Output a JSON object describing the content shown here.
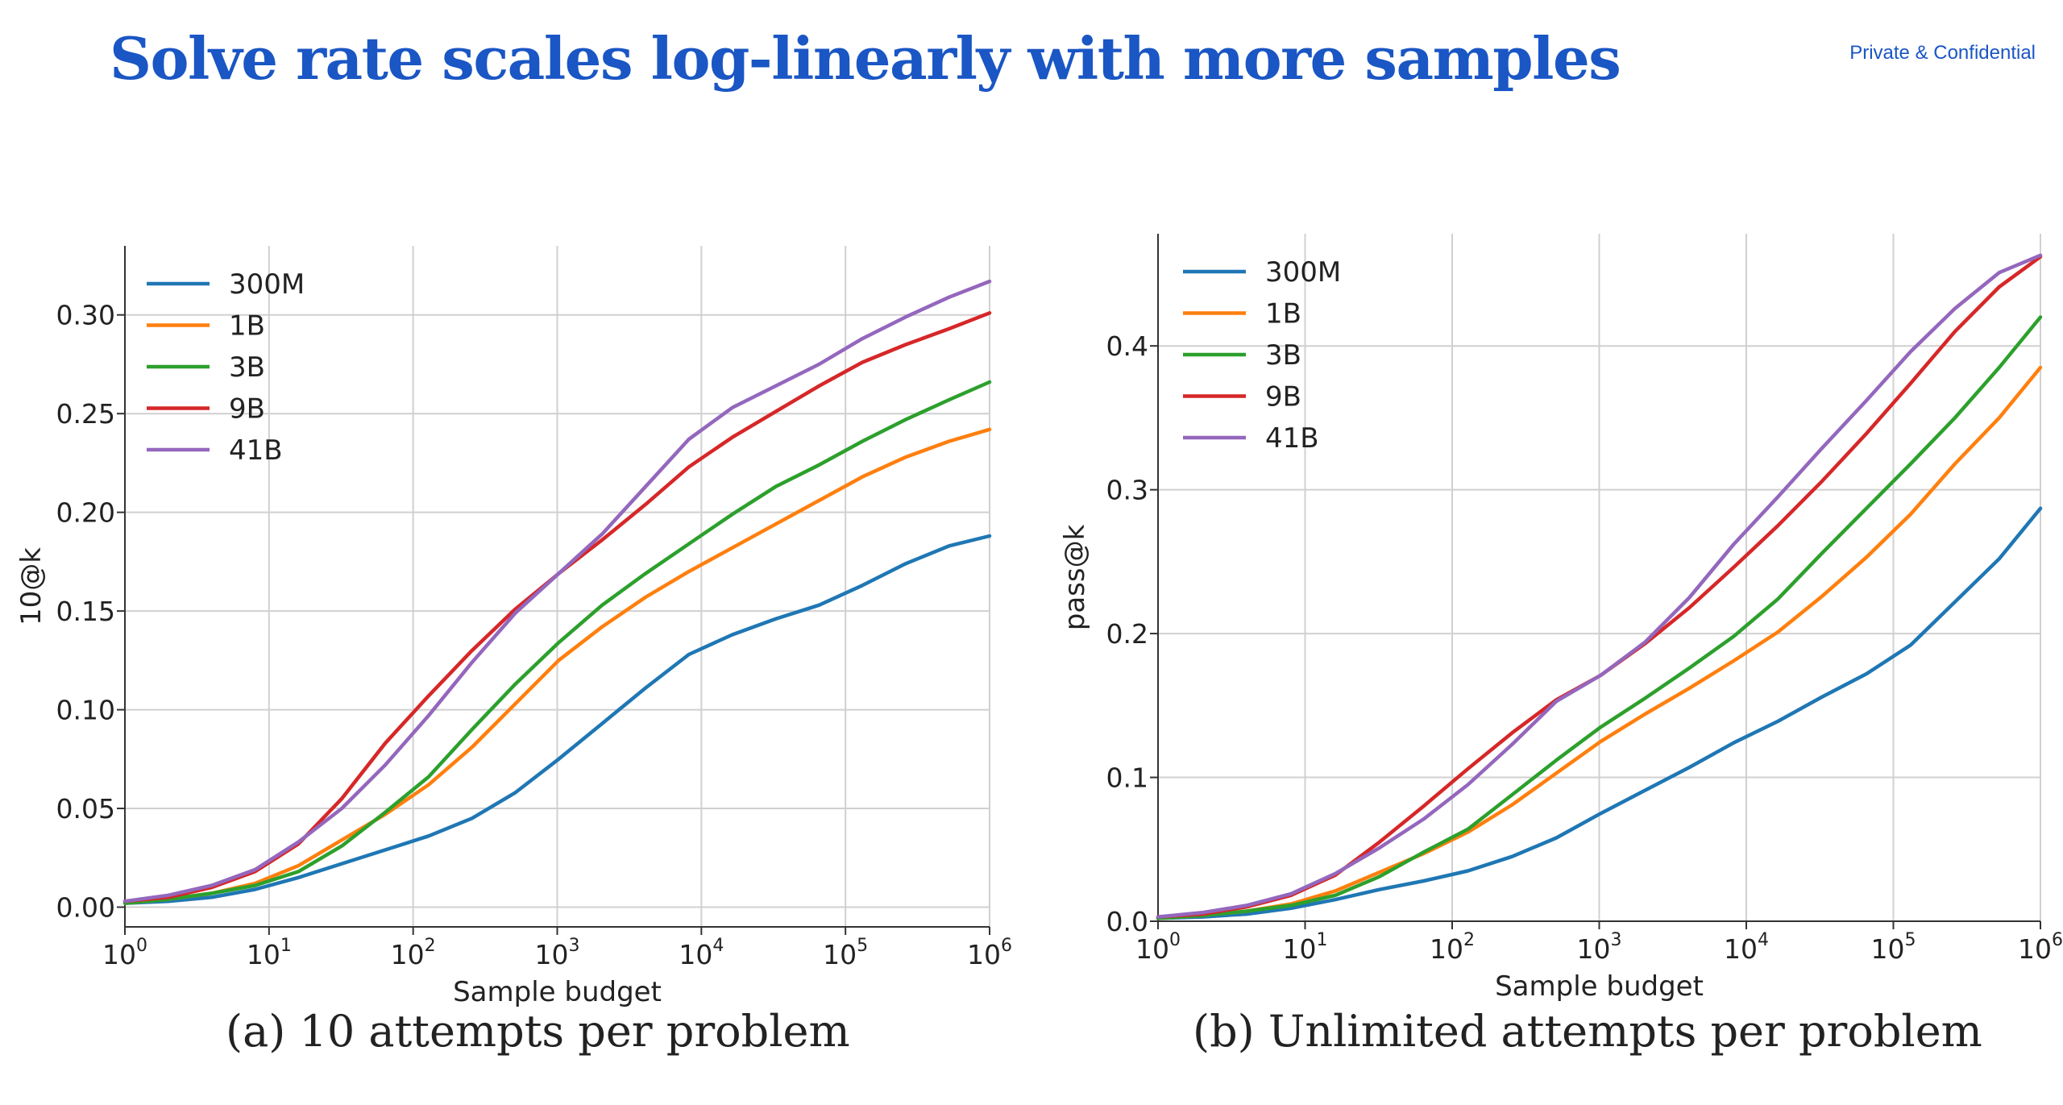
{
  "header": {
    "title": "Solve rate scales log-linearly with more samples",
    "confidential": "Private & Confidential"
  },
  "chart_data": [
    {
      "type": "line",
      "caption": "(a) 10 attempts per problem",
      "xlabel": "Sample budget",
      "ylabel": "10@k",
      "xscale": "log",
      "xlim": [
        1,
        1000000
      ],
      "ylim": [
        -0.01,
        0.335
      ],
      "xticks": [
        1,
        10,
        100,
        1000,
        10000,
        100000,
        1000000
      ],
      "yticks": [
        0.0,
        0.05,
        0.1,
        0.15,
        0.2,
        0.25,
        0.3
      ],
      "ytick_labels": [
        "0.00",
        "0.05",
        "0.10",
        "0.15",
        "0.20",
        "0.25",
        "0.30"
      ],
      "grid": true,
      "legend_position": "top-left",
      "x": [
        1,
        2,
        4,
        8,
        16,
        32,
        64,
        128,
        256,
        512,
        1024,
        2048,
        4096,
        8192,
        16384,
        32768,
        65536,
        131072,
        262144,
        524288,
        1000000
      ],
      "series": [
        {
          "name": "300M",
          "color": "#1f77b4",
          "values": [
            0.002,
            0.003,
            0.005,
            0.009,
            0.015,
            0.022,
            0.029,
            0.036,
            0.045,
            0.058,
            0.075,
            0.093,
            0.111,
            0.128,
            0.138,
            0.146,
            0.153,
            0.163,
            0.174,
            0.183,
            0.188
          ]
        },
        {
          "name": "1B",
          "color": "#ff7f0e",
          "values": [
            0.002,
            0.004,
            0.007,
            0.012,
            0.021,
            0.034,
            0.047,
            0.062,
            0.081,
            0.103,
            0.125,
            0.142,
            0.157,
            0.17,
            0.182,
            0.194,
            0.206,
            0.218,
            0.228,
            0.236,
            0.242
          ]
        },
        {
          "name": "3B",
          "color": "#2ca02c",
          "values": [
            0.002,
            0.004,
            0.007,
            0.011,
            0.018,
            0.031,
            0.048,
            0.066,
            0.09,
            0.113,
            0.134,
            0.153,
            0.169,
            0.184,
            0.199,
            0.213,
            0.224,
            0.236,
            0.247,
            0.257,
            0.266
          ]
        },
        {
          "name": "9B",
          "color": "#d62728",
          "values": [
            0.003,
            0.005,
            0.01,
            0.018,
            0.032,
            0.055,
            0.083,
            0.107,
            0.13,
            0.151,
            0.169,
            0.186,
            0.204,
            0.223,
            0.238,
            0.251,
            0.264,
            0.276,
            0.285,
            0.293,
            0.301
          ]
        },
        {
          "name": "41B",
          "color": "#9467bd",
          "values": [
            0.003,
            0.006,
            0.011,
            0.019,
            0.033,
            0.05,
            0.072,
            0.097,
            0.124,
            0.149,
            0.169,
            0.189,
            0.213,
            0.237,
            0.253,
            0.264,
            0.275,
            0.288,
            0.299,
            0.309,
            0.317
          ]
        }
      ]
    },
    {
      "type": "line",
      "caption": "(b) Unlimited attempts per problem",
      "xlabel": "Sample budget",
      "ylabel": "pass@k",
      "xscale": "log",
      "xlim": [
        1,
        1000000
      ],
      "ylim": [
        0.0,
        0.478
      ],
      "xticks": [
        1,
        10,
        100,
        1000,
        10000,
        100000,
        1000000
      ],
      "yticks": [
        0.0,
        0.1,
        0.2,
        0.3,
        0.4
      ],
      "ytick_labels": [
        "0.0",
        "0.1",
        "0.2",
        "0.3",
        "0.4"
      ],
      "grid": true,
      "legend_position": "top-left",
      "x": [
        1,
        2,
        4,
        8,
        16,
        32,
        64,
        128,
        256,
        512,
        1024,
        2048,
        4096,
        8192,
        16384,
        32768,
        65536,
        131072,
        262144,
        524288,
        1000000
      ],
      "series": [
        {
          "name": "300M",
          "color": "#1f77b4",
          "values": [
            0.002,
            0.003,
            0.005,
            0.009,
            0.015,
            0.022,
            0.028,
            0.035,
            0.045,
            0.058,
            0.075,
            0.091,
            0.107,
            0.124,
            0.139,
            0.156,
            0.172,
            0.192,
            0.222,
            0.252,
            0.287
          ]
        },
        {
          "name": "1B",
          "color": "#ff7f0e",
          "values": [
            0.002,
            0.004,
            0.007,
            0.012,
            0.021,
            0.034,
            0.047,
            0.062,
            0.081,
            0.103,
            0.125,
            0.144,
            0.162,
            0.181,
            0.201,
            0.226,
            0.253,
            0.283,
            0.318,
            0.35,
            0.385
          ]
        },
        {
          "name": "3B",
          "color": "#2ca02c",
          "values": [
            0.002,
            0.004,
            0.007,
            0.011,
            0.018,
            0.031,
            0.048,
            0.064,
            0.088,
            0.112,
            0.135,
            0.155,
            0.176,
            0.198,
            0.224,
            0.256,
            0.287,
            0.318,
            0.35,
            0.385,
            0.42
          ]
        },
        {
          "name": "9B",
          "color": "#d62728",
          "values": [
            0.003,
            0.005,
            0.01,
            0.018,
            0.032,
            0.055,
            0.08,
            0.106,
            0.131,
            0.154,
            0.171,
            0.193,
            0.218,
            0.246,
            0.275,
            0.306,
            0.339,
            0.374,
            0.41,
            0.441,
            0.462
          ]
        },
        {
          "name": "41B",
          "color": "#9467bd",
          "values": [
            0.003,
            0.006,
            0.011,
            0.019,
            0.033,
            0.051,
            0.071,
            0.095,
            0.123,
            0.153,
            0.171,
            0.194,
            0.225,
            0.262,
            0.295,
            0.329,
            0.362,
            0.396,
            0.426,
            0.451,
            0.463
          ]
        }
      ]
    }
  ]
}
